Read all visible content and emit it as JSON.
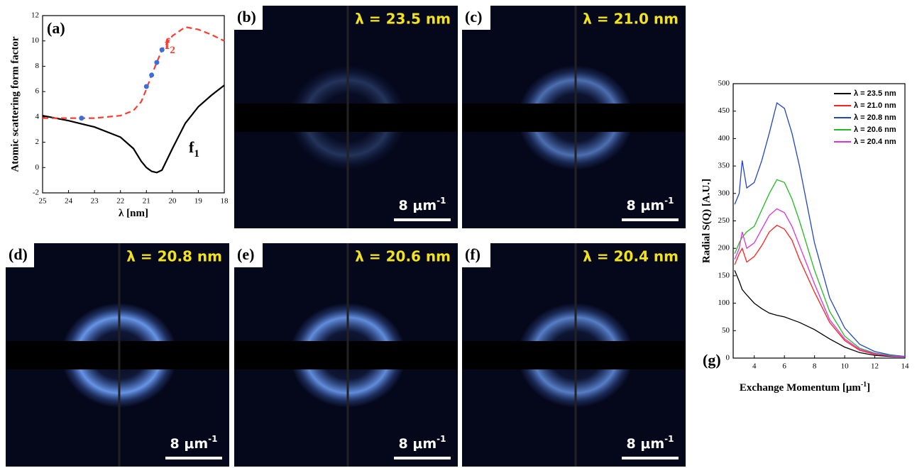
{
  "chart_data": [
    {
      "type": "line",
      "panel_label": "(a)",
      "y_label": "Atomic scattering form factor",
      "x_label": "λ [nm]",
      "xlim": [
        25,
        18
      ],
      "xticks": [
        25,
        24,
        23,
        22,
        21,
        20,
        19,
        18
      ],
      "ylim": [
        -2,
        12
      ],
      "yticks": [
        -2,
        0,
        2,
        4,
        6,
        8,
        10,
        12
      ],
      "x": [
        25,
        24,
        23,
        22,
        21.5,
        21.2,
        21,
        20.8,
        20.6,
        20.4,
        20,
        19.5,
        19,
        18.5,
        18
      ],
      "series": [
        {
          "color": "#000000",
          "line_style": "solid",
          "values": [
            4.1,
            3.7,
            3.2,
            2.4,
            1.5,
            0.5,
            0,
            -0.3,
            -0.4,
            -0.2,
            1.5,
            3.5,
            4.8,
            5.7,
            6.5
          ]
        },
        {
          "color": "#ff3b30",
          "line_style": "dashed",
          "values": [
            3.9,
            3.9,
            3.9,
            4.1,
            4.5,
            5.2,
            6.2,
            7.3,
            8.3,
            9.3,
            10.4,
            11.1,
            10.9,
            10.5,
            10.0
          ]
        }
      ],
      "points": {
        "color": "#3a6fd8",
        "x": [
          23.5,
          21,
          20.8,
          20.6,
          20.4
        ],
        "y": [
          3.9,
          6.4,
          7.3,
          8.3,
          9.3
        ]
      },
      "annotations": [
        {
          "text": "f",
          "subscript": "2",
          "color": "#ff3b30"
        },
        {
          "text": "f",
          "subscript": "1",
          "color": "#000000"
        }
      ]
    },
    {
      "type": "line",
      "panel_label": "(g)",
      "y_label": "Radial S(Q) [A.U.]",
      "x_label": "Exchange Momentum [μm",
      "x_label_superscript": "-1",
      "x_label_end": "]",
      "xlim": [
        2.6,
        14
      ],
      "xticks": [
        4,
        6,
        8,
        10,
        12,
        14
      ],
      "ylim": [
        0,
        500
      ],
      "yticks": [
        0,
        50,
        100,
        150,
        200,
        250,
        300,
        350,
        400,
        450,
        500
      ],
      "legend": "upper right",
      "x": [
        2.7,
        3,
        3.2,
        3.5,
        4,
        4.5,
        5,
        5.5,
        6,
        6.5,
        7,
        8,
        9,
        10,
        11,
        12,
        13,
        14
      ],
      "series": [
        {
          "name": "λ = 23.5 nm",
          "color": "#000000",
          "values": [
            160,
            140,
            125,
            115,
            100,
            90,
            82,
            78,
            75,
            70,
            65,
            52,
            35,
            20,
            10,
            5,
            3,
            2
          ]
        },
        {
          "name": "λ = 21.0 nm",
          "color": "#ff2020",
          "values": [
            170,
            190,
            200,
            175,
            185,
            205,
            230,
            242,
            235,
            215,
            180,
            120,
            65,
            32,
            14,
            7,
            4,
            2
          ]
        },
        {
          "name": "λ = 20.8 nm",
          "color": "#2244cc",
          "values": [
            280,
            300,
            360,
            310,
            320,
            360,
            410,
            465,
            455,
            410,
            350,
            210,
            110,
            55,
            25,
            12,
            6,
            3
          ]
        },
        {
          "name": "λ = 20.6 nm",
          "color": "#22bb22",
          "values": [
            190,
            210,
            220,
            230,
            240,
            270,
            300,
            325,
            320,
            290,
            250,
            160,
            85,
            40,
            18,
            9,
            5,
            2
          ]
        },
        {
          "name": "λ = 20.4 nm",
          "color": "#dd33dd",
          "values": [
            180,
            200,
            230,
            200,
            210,
            235,
            260,
            272,
            265,
            240,
            205,
            135,
            70,
            35,
            16,
            8,
            4,
            2
          ]
        }
      ]
    }
  ],
  "images": [
    {
      "label": "(b)",
      "caption": "λ = 23.5 nm",
      "scale_bar": "8 μm",
      "scale_bar_superscript": "-1"
    },
    {
      "label": "(c)",
      "caption": "λ = 21.0 nm",
      "scale_bar": "8 μm",
      "scale_bar_superscript": "-1"
    },
    {
      "label": "(d)",
      "caption": "λ = 20.8 nm",
      "scale_bar": "8 μm",
      "scale_bar_superscript": "-1"
    },
    {
      "label": "(e)",
      "caption": "λ = 20.6 nm",
      "scale_bar": "8 μm",
      "scale_bar_superscript": "-1"
    },
    {
      "label": "(f)",
      "caption": "λ = 20.4 nm",
      "scale_bar": "8 μm",
      "scale_bar_superscript": "-1"
    }
  ]
}
